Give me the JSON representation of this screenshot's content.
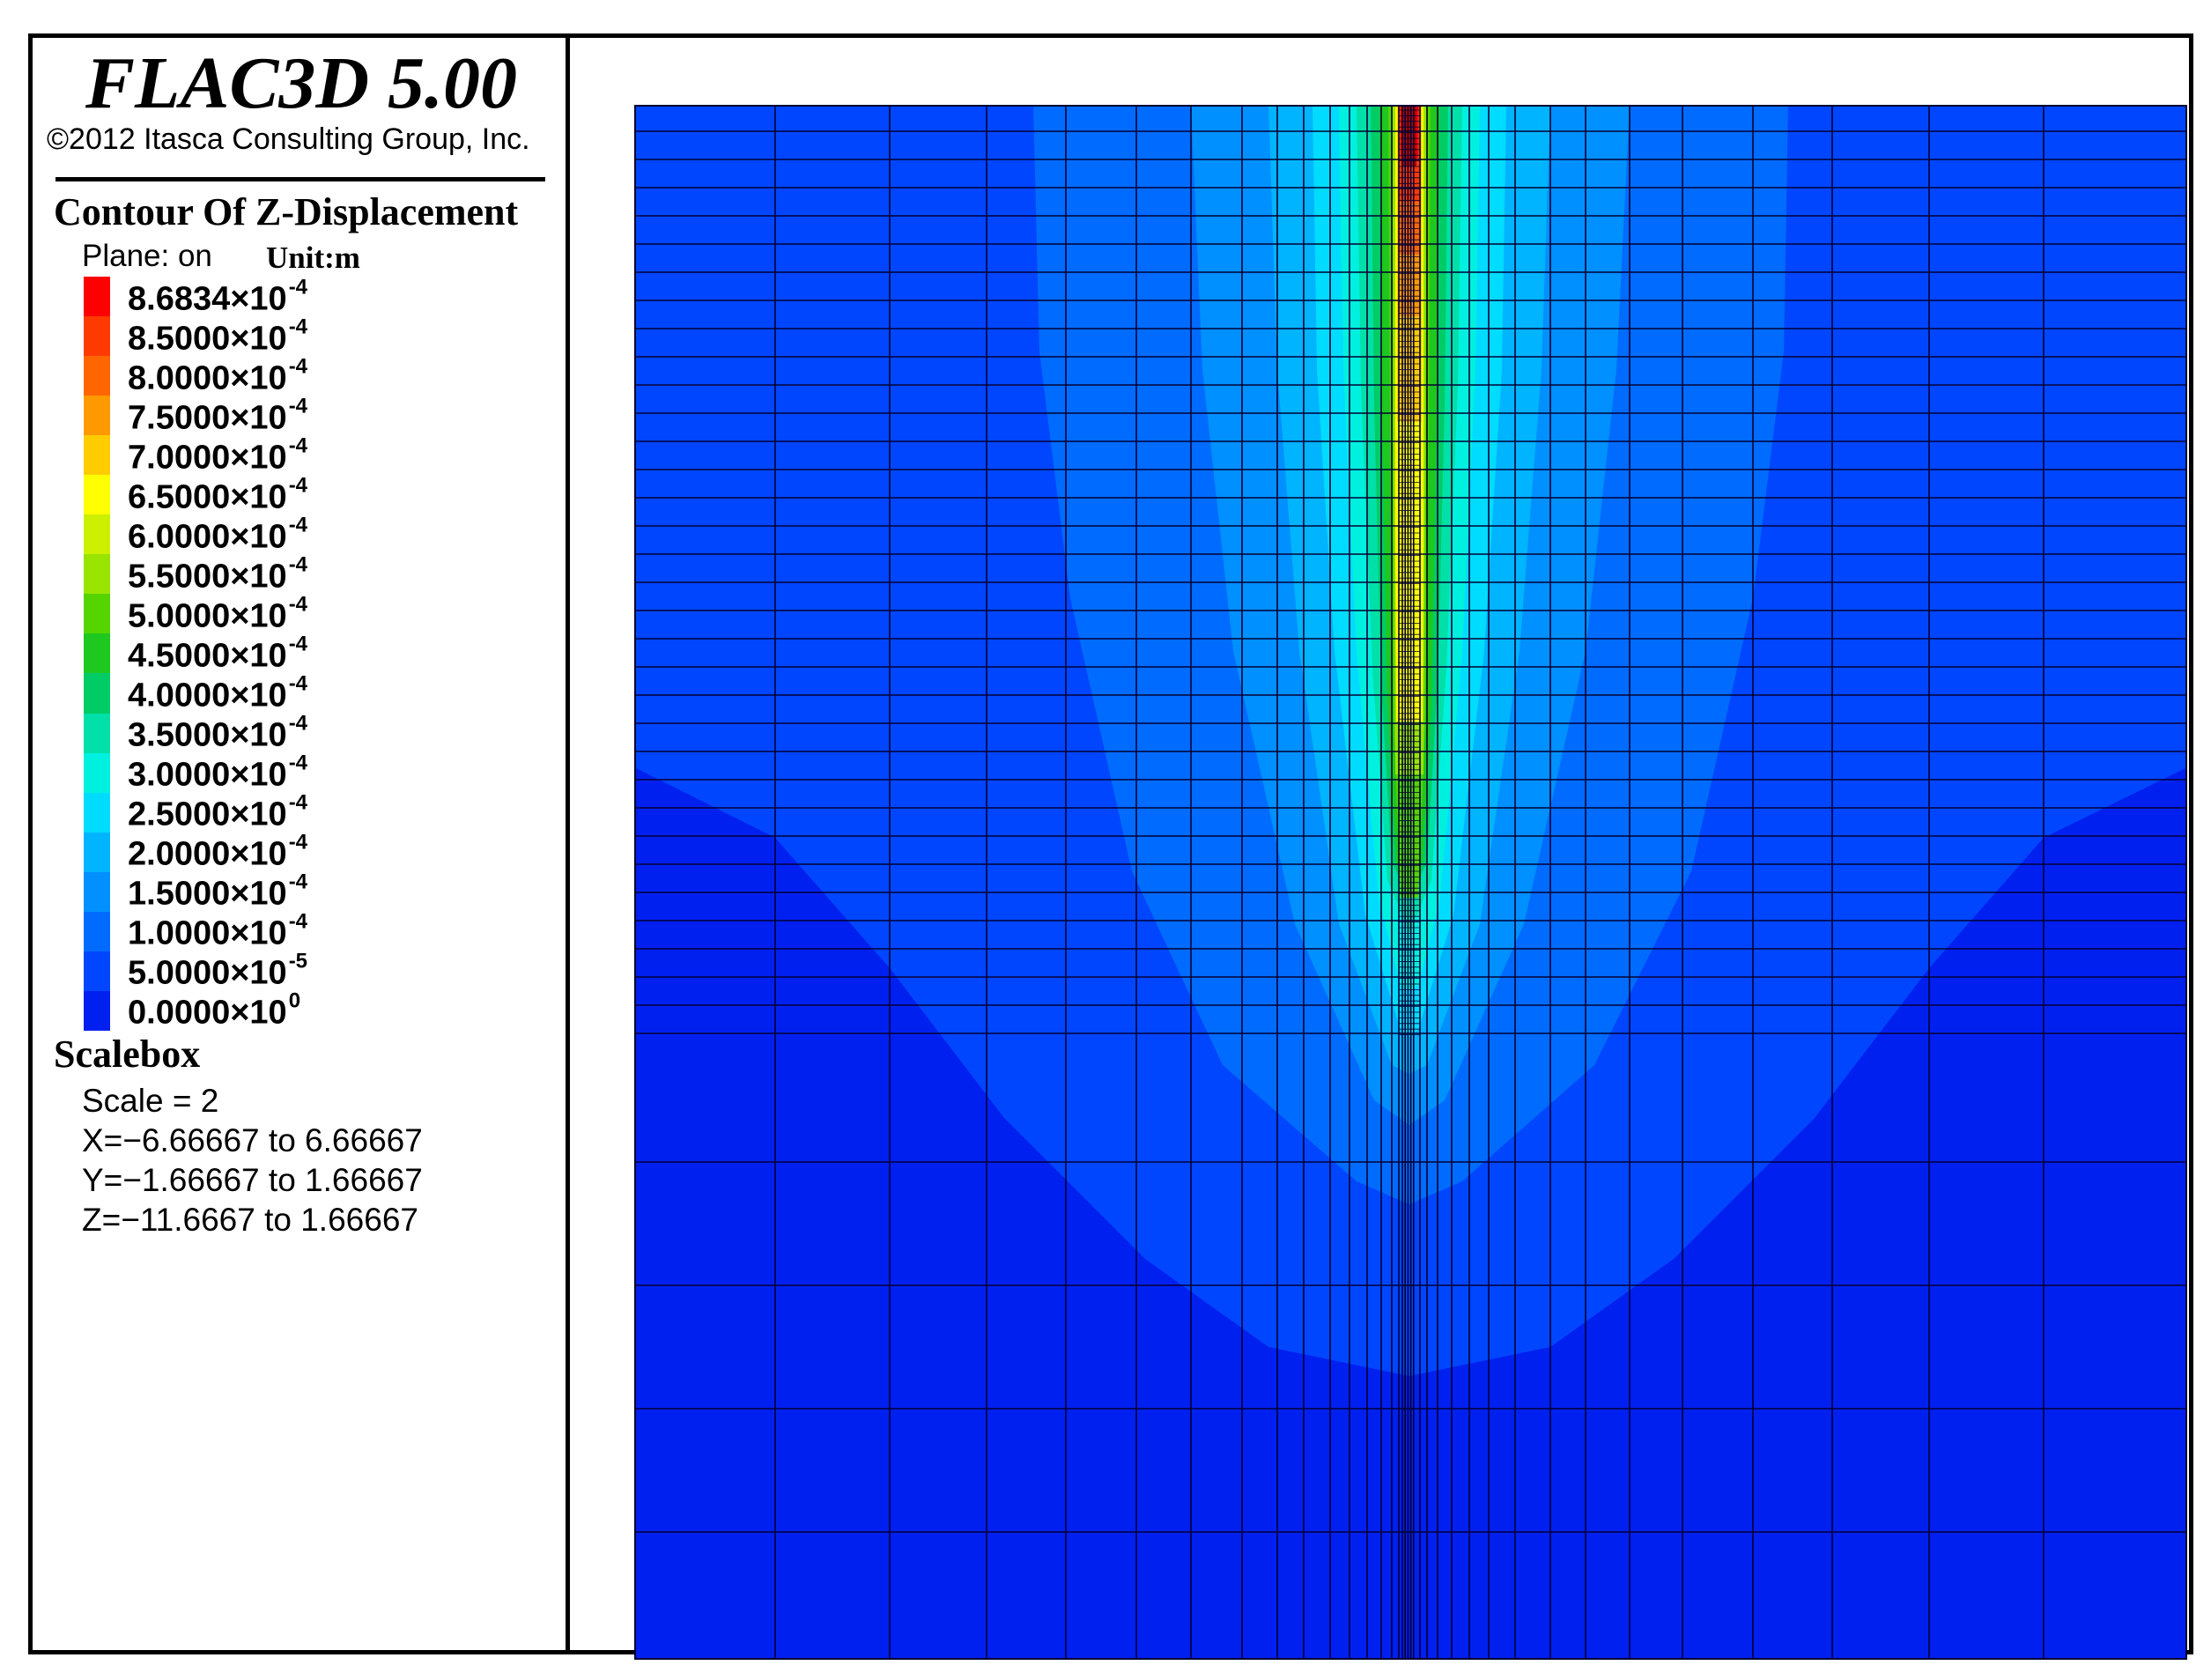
{
  "header": {
    "title": "FLAC3D 5.00",
    "copyright": "©2012 Itasca Consulting Group, Inc."
  },
  "legend": {
    "title": "Contour Of Z-Displacement",
    "plane": "Plane: on",
    "unit": "Unit:m",
    "entries": [
      {
        "mantissa": "8.6834×10",
        "exp": "-4",
        "color": "#ff0000"
      },
      {
        "mantissa": "8.5000×10",
        "exp": "-4",
        "color": "#ff3a00"
      },
      {
        "mantissa": "8.0000×10",
        "exp": "-4",
        "color": "#ff6600"
      },
      {
        "mantissa": "7.5000×10",
        "exp": "-4",
        "color": "#ff9900"
      },
      {
        "mantissa": "7.0000×10",
        "exp": "-4",
        "color": "#ffcc00"
      },
      {
        "mantissa": "6.5000×10",
        "exp": "-4",
        "color": "#ffff00"
      },
      {
        "mantissa": "6.0000×10",
        "exp": "-4",
        "color": "#ccf000"
      },
      {
        "mantissa": "5.5000×10",
        "exp": "-4",
        "color": "#99e400"
      },
      {
        "mantissa": "5.0000×10",
        "exp": "-4",
        "color": "#55d400"
      },
      {
        "mantissa": "4.5000×10",
        "exp": "-4",
        "color": "#1ec81e"
      },
      {
        "mantissa": "4.0000×10",
        "exp": "-4",
        "color": "#00cc66"
      },
      {
        "mantissa": "3.5000×10",
        "exp": "-4",
        "color": "#00e0a8"
      },
      {
        "mantissa": "3.0000×10",
        "exp": "-4",
        "color": "#00f0e0"
      },
      {
        "mantissa": "2.5000×10",
        "exp": "-4",
        "color": "#00dcff"
      },
      {
        "mantissa": "2.0000×10",
        "exp": "-4",
        "color": "#00b4ff"
      },
      {
        "mantissa": "1.5000×10",
        "exp": "-4",
        "color": "#0090ff"
      },
      {
        "mantissa": "1.0000×10",
        "exp": "-4",
        "color": "#006cff"
      },
      {
        "mantissa": "5.0000×10",
        "exp": "-5",
        "color": "#0046ff"
      },
      {
        "mantissa": "0.0000×10",
        "exp": "0",
        "color": "#0020f0"
      }
    ]
  },
  "scalebox": {
    "title": "Scalebox",
    "scale": "Scale = 2",
    "x_range": "X=−6.66667 to 6.66667",
    "y_range": "Y=−1.66667 to 1.66667",
    "z_range": "Z=−11.6667 to 1.66667"
  },
  "plot": {
    "background_color": "#0020f0",
    "grid_color": "#000033"
  }
}
